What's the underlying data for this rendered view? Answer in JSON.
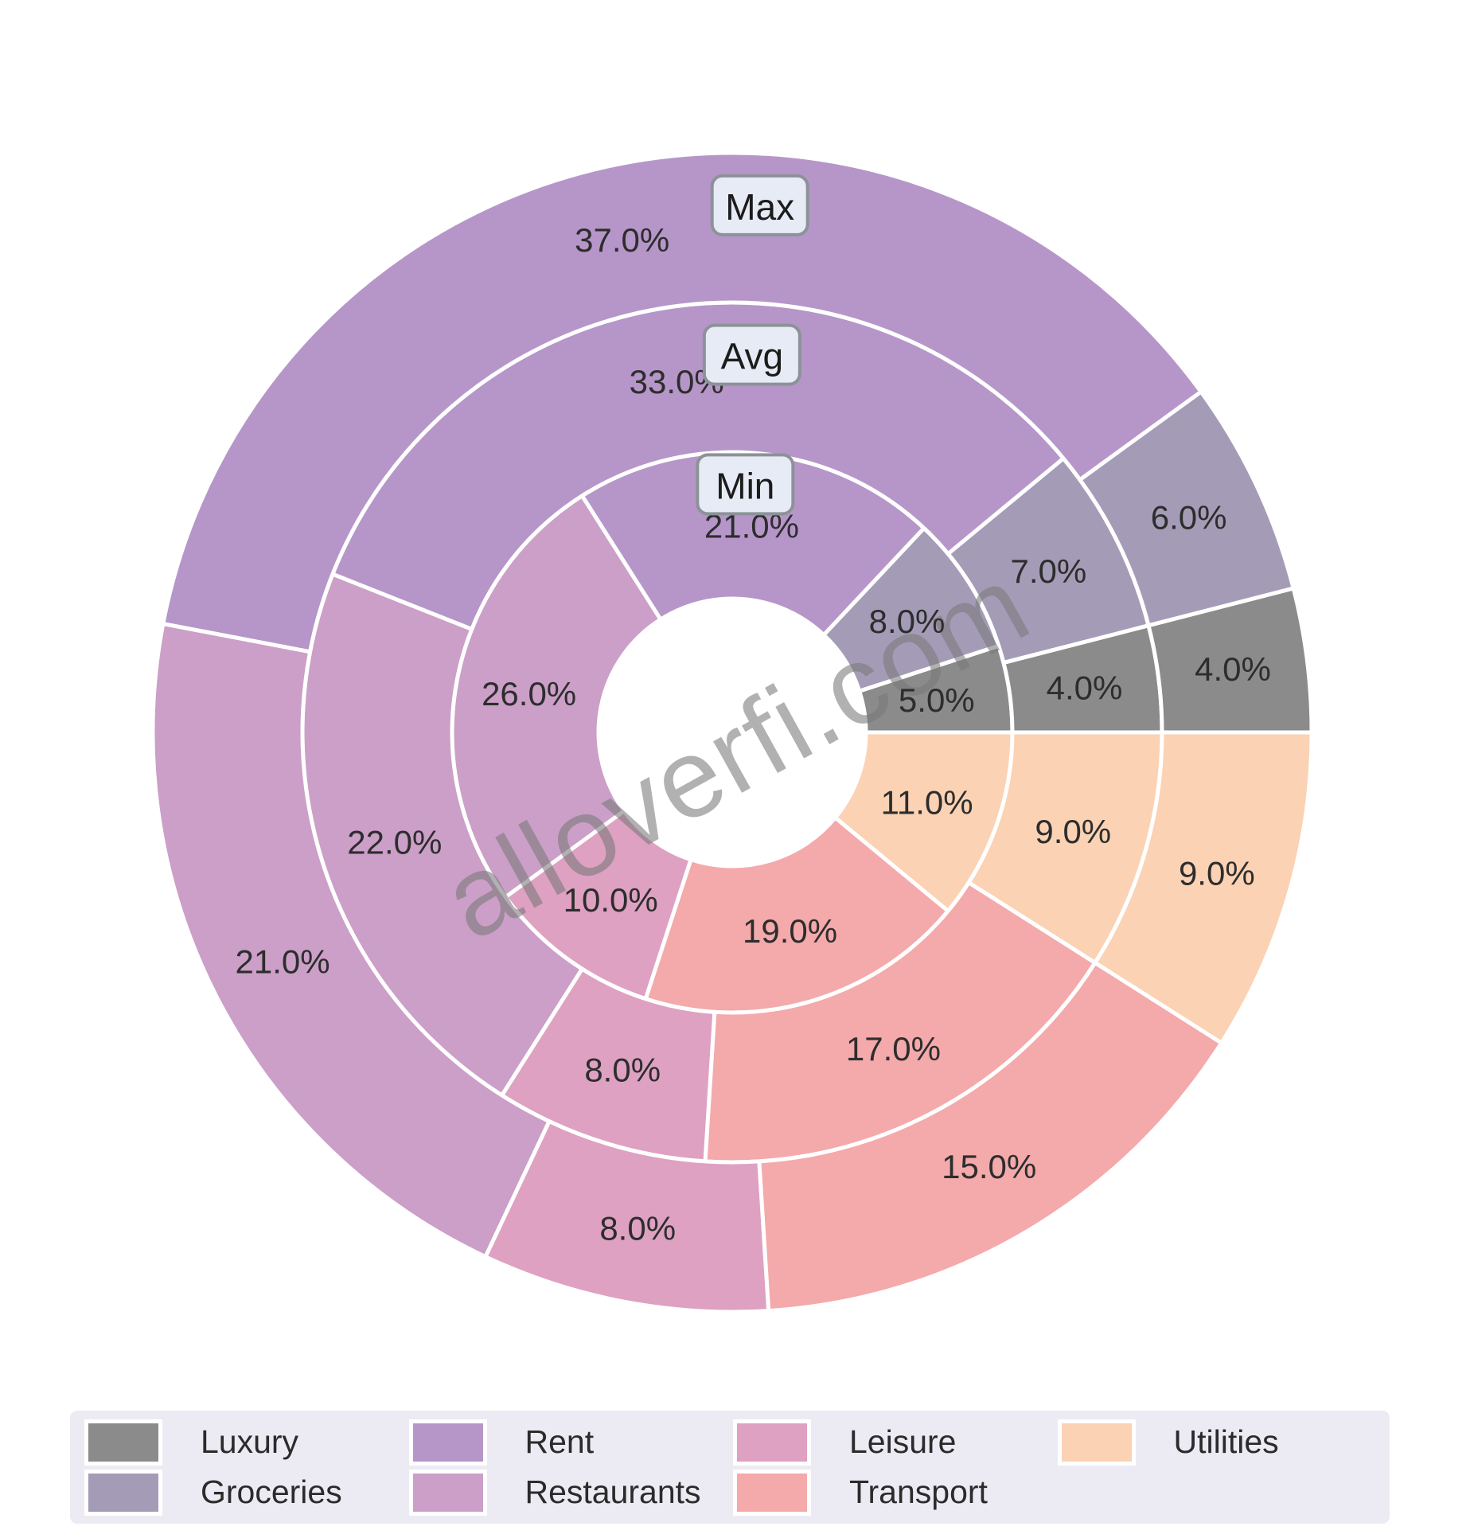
{
  "page": {
    "background": "#ffffff"
  },
  "watermark": "alloverfi.com",
  "chart_data": {
    "type": "pie",
    "subtype": "nested_donut",
    "title": "",
    "categories": [
      "Luxury",
      "Groceries",
      "Rent",
      "Restaurants",
      "Leisure",
      "Transport",
      "Utilities"
    ],
    "rings_inner_to_outer": [
      "Min",
      "Avg",
      "Max"
    ],
    "series": [
      {
        "name": "Min",
        "values": [
          5.0,
          8.0,
          21.0,
          26.0,
          10.0,
          19.0,
          11.0
        ]
      },
      {
        "name": "Avg",
        "values": [
          4.0,
          7.0,
          33.0,
          22.0,
          8.0,
          17.0,
          9.0
        ]
      },
      {
        "name": "Max",
        "values": [
          4.0,
          6.0,
          37.0,
          21.0,
          8.0,
          15.0,
          9.0
        ]
      }
    ],
    "unit": "%",
    "label_format": "one_decimal_percent",
    "start_angle_deg": 0,
    "direction": "counterclockwise",
    "grid": false,
    "legend_position": "bottom",
    "colors": {
      "Luxury": "#8b8b8b",
      "Groceries": "#a49cb7",
      "Rent": "#b696c9",
      "Restaurants": "#cb9fc8",
      "Leisure": "#dea1c2",
      "Transport": "#f4a9ab",
      "Utilities": "#fbd2b4"
    },
    "ring_label_style": {
      "fill": "#e7ebf5",
      "border": "#8d9298",
      "text_color": "#1c1c1c"
    }
  },
  "legend": {
    "items": [
      {
        "label": "Luxury",
        "color": "#8b8b8b"
      },
      {
        "label": "Groceries",
        "color": "#a49cb7"
      },
      {
        "label": "Rent",
        "color": "#b696c9"
      },
      {
        "label": "Restaurants",
        "color": "#cb9fc8"
      },
      {
        "label": "Leisure",
        "color": "#dea1c2"
      },
      {
        "label": "Transport",
        "color": "#f4a9ab"
      },
      {
        "label": "Utilities",
        "color": "#fbd2b4"
      }
    ]
  }
}
